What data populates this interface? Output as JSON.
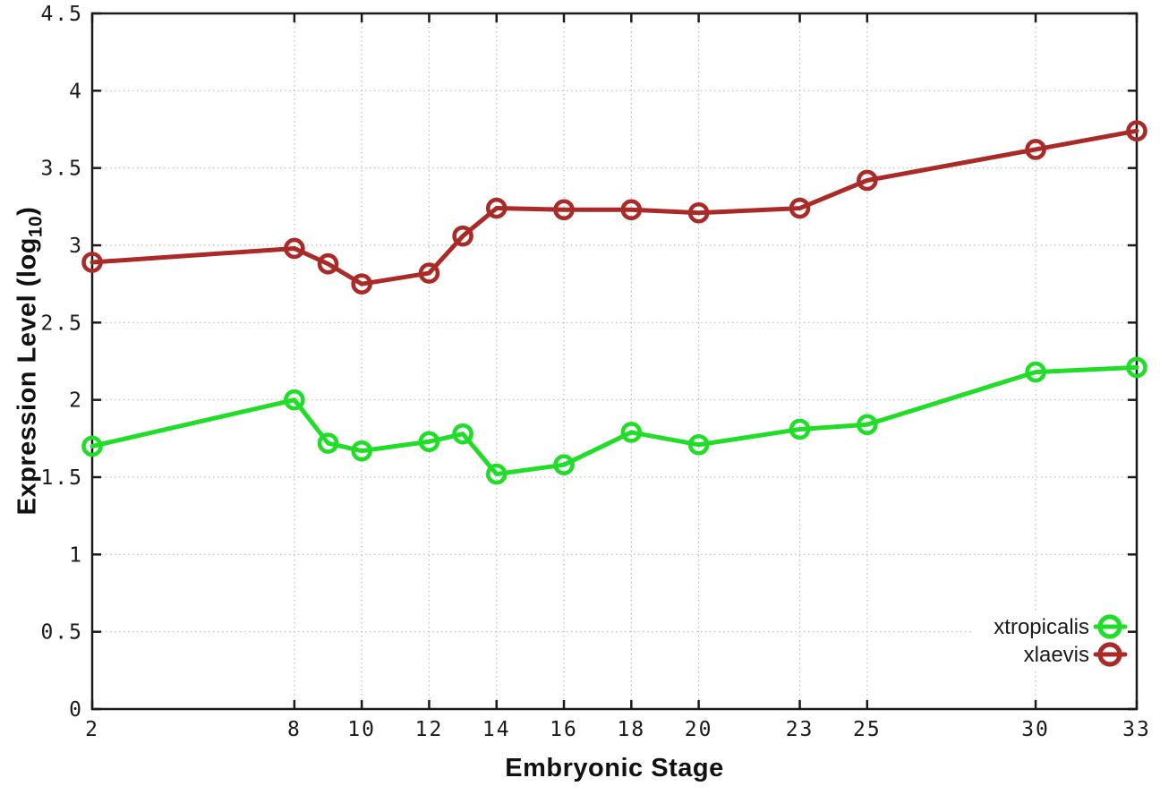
{
  "figure": {
    "background": "#ffffff",
    "axis_color": "#1a1a1a",
    "grid_color": "#bcbcbc",
    "text_color": "#1a1a1a"
  },
  "chart_data": {
    "type": "line",
    "title": "",
    "xlabel": "Embryonic Stage",
    "ylabel": {
      "text": "Expression Level (log",
      "subscript": "10",
      "suffix": ")"
    },
    "xlim": [
      2,
      33
    ],
    "ylim": [
      0,
      4.5
    ],
    "grid": true,
    "legend_position": "bottom-right",
    "x_ticks": [
      {
        "value": 2,
        "label": "2"
      },
      {
        "value": 8,
        "label": "8"
      },
      {
        "value": 10,
        "label": "10"
      },
      {
        "value": 12,
        "label": "12"
      },
      {
        "value": 14,
        "label": "14"
      },
      {
        "value": 16,
        "label": "16"
      },
      {
        "value": 18,
        "label": "18"
      },
      {
        "value": 20,
        "label": "20"
      },
      {
        "value": 23,
        "label": "23"
      },
      {
        "value": 25,
        "label": "25"
      },
      {
        "value": 30,
        "label": "30"
      },
      {
        "value": 33,
        "label": "33"
      }
    ],
    "y_ticks": [
      {
        "value": 0,
        "label": "0"
      },
      {
        "value": 0.5,
        "label": "0.5"
      },
      {
        "value": 1,
        "label": "1"
      },
      {
        "value": 1.5,
        "label": "1.5"
      },
      {
        "value": 2,
        "label": "2"
      },
      {
        "value": 2.5,
        "label": "2.5"
      },
      {
        "value": 3,
        "label": "3"
      },
      {
        "value": 3.5,
        "label": "3.5"
      },
      {
        "value": 4,
        "label": "4"
      },
      {
        "value": 4.5,
        "label": "4.5"
      }
    ],
    "x": [
      2,
      8,
      9,
      10,
      12,
      13,
      14,
      16,
      18,
      20,
      23,
      25,
      30,
      33
    ],
    "series": [
      {
        "name": "xtropicalis",
        "color": "#20dd28",
        "values": [
          1.7,
          2.0,
          1.72,
          1.67,
          1.73,
          1.78,
          1.52,
          1.58,
          1.79,
          1.71,
          1.81,
          1.84,
          2.18,
          2.21
        ]
      },
      {
        "name": "xlaevis",
        "color": "#a92a26",
        "values": [
          2.89,
          2.98,
          2.88,
          2.75,
          2.82,
          3.06,
          3.24,
          3.23,
          3.23,
          3.21,
          3.24,
          3.42,
          3.62,
          3.74
        ]
      }
    ]
  }
}
